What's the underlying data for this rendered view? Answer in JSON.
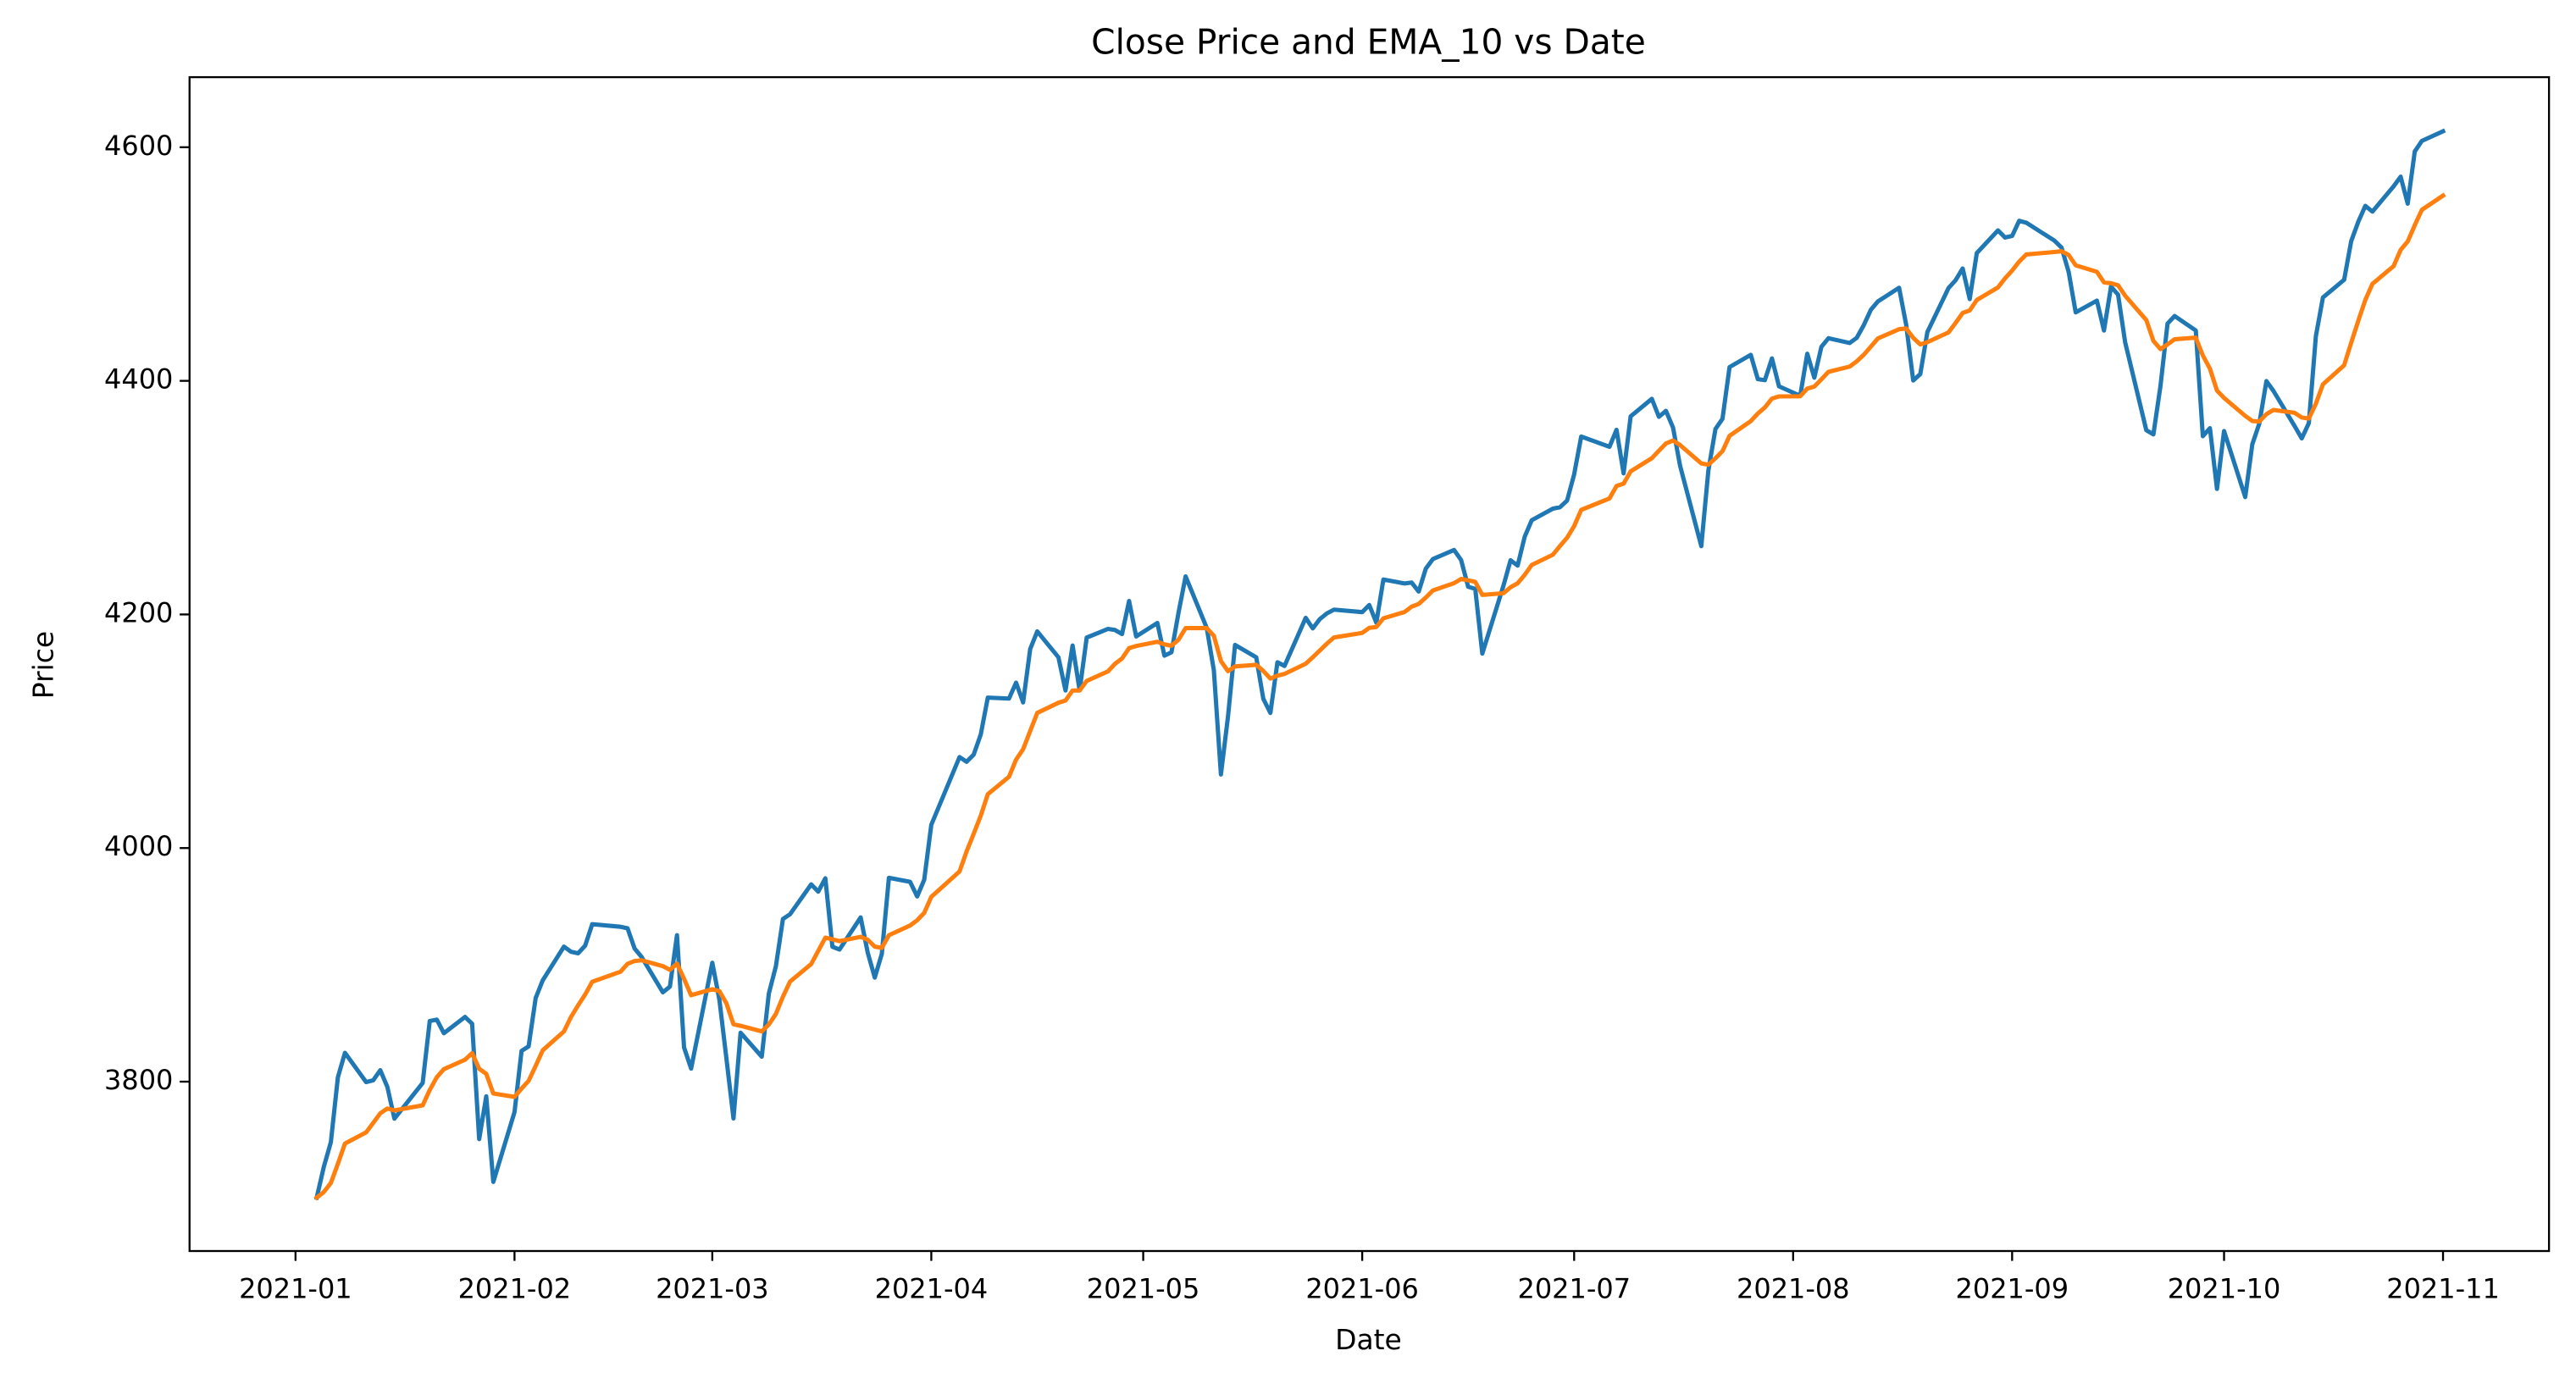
{
  "chart_data": {
    "type": "line",
    "title": "Close Price and EMA_10 vs Date",
    "x_label": "Date",
    "y_label": "Price",
    "x": [
      "2021-01-04",
      "2021-01-05",
      "2021-01-06",
      "2021-01-07",
      "2021-01-08",
      "2021-01-11",
      "2021-01-12",
      "2021-01-13",
      "2021-01-14",
      "2021-01-15",
      "2021-01-19",
      "2021-01-20",
      "2021-01-21",
      "2021-01-22",
      "2021-01-25",
      "2021-01-26",
      "2021-01-27",
      "2021-01-28",
      "2021-01-29",
      "2021-02-01",
      "2021-02-02",
      "2021-02-03",
      "2021-02-04",
      "2021-02-05",
      "2021-02-08",
      "2021-02-09",
      "2021-02-10",
      "2021-02-11",
      "2021-02-12",
      "2021-02-16",
      "2021-02-17",
      "2021-02-18",
      "2021-02-19",
      "2021-02-22",
      "2021-02-23",
      "2021-02-24",
      "2021-02-25",
      "2021-02-26",
      "2021-03-01",
      "2021-03-02",
      "2021-03-03",
      "2021-03-04",
      "2021-03-05",
      "2021-03-08",
      "2021-03-09",
      "2021-03-10",
      "2021-03-11",
      "2021-03-12",
      "2021-03-15",
      "2021-03-16",
      "2021-03-17",
      "2021-03-18",
      "2021-03-19",
      "2021-03-22",
      "2021-03-23",
      "2021-03-24",
      "2021-03-25",
      "2021-03-26",
      "2021-03-29",
      "2021-03-30",
      "2021-03-31",
      "2021-04-01",
      "2021-04-05",
      "2021-04-06",
      "2021-04-07",
      "2021-04-08",
      "2021-04-09",
      "2021-04-12",
      "2021-04-13",
      "2021-04-14",
      "2021-04-15",
      "2021-04-16",
      "2021-04-19",
      "2021-04-20",
      "2021-04-21",
      "2021-04-22",
      "2021-04-23",
      "2021-04-26",
      "2021-04-27",
      "2021-04-28",
      "2021-04-29",
      "2021-04-30",
      "2021-05-03",
      "2021-05-04",
      "2021-05-05",
      "2021-05-06",
      "2021-05-07",
      "2021-05-10",
      "2021-05-11",
      "2021-05-12",
      "2021-05-13",
      "2021-05-14",
      "2021-05-17",
      "2021-05-18",
      "2021-05-19",
      "2021-05-20",
      "2021-05-21",
      "2021-05-24",
      "2021-05-25",
      "2021-05-26",
      "2021-05-27",
      "2021-05-28",
      "2021-06-01",
      "2021-06-02",
      "2021-06-03",
      "2021-06-04",
      "2021-06-07",
      "2021-06-08",
      "2021-06-09",
      "2021-06-10",
      "2021-06-11",
      "2021-06-14",
      "2021-06-15",
      "2021-06-16",
      "2021-06-17",
      "2021-06-18",
      "2021-06-21",
      "2021-06-22",
      "2021-06-23",
      "2021-06-24",
      "2021-06-25",
      "2021-06-28",
      "2021-06-29",
      "2021-06-30",
      "2021-07-01",
      "2021-07-02",
      "2021-07-06",
      "2021-07-07",
      "2021-07-08",
      "2021-07-09",
      "2021-07-12",
      "2021-07-13",
      "2021-07-14",
      "2021-07-15",
      "2021-07-16",
      "2021-07-19",
      "2021-07-20",
      "2021-07-21",
      "2021-07-22",
      "2021-07-23",
      "2021-07-26",
      "2021-07-27",
      "2021-07-28",
      "2021-07-29",
      "2021-07-30",
      "2021-08-02",
      "2021-08-03",
      "2021-08-04",
      "2021-08-05",
      "2021-08-06",
      "2021-08-09",
      "2021-08-10",
      "2021-08-11",
      "2021-08-12",
      "2021-08-13",
      "2021-08-16",
      "2021-08-17",
      "2021-08-18",
      "2021-08-19",
      "2021-08-20",
      "2021-08-23",
      "2021-08-24",
      "2021-08-25",
      "2021-08-26",
      "2021-08-27",
      "2021-08-30",
      "2021-08-31",
      "2021-09-01",
      "2021-09-02",
      "2021-09-03",
      "2021-09-07",
      "2021-09-08",
      "2021-09-09",
      "2021-09-10",
      "2021-09-13",
      "2021-09-14",
      "2021-09-15",
      "2021-09-16",
      "2021-09-17",
      "2021-09-20",
      "2021-09-21",
      "2021-09-22",
      "2021-09-23",
      "2021-09-24",
      "2021-09-27",
      "2021-09-28",
      "2021-09-29",
      "2021-09-30",
      "2021-10-01",
      "2021-10-04",
      "2021-10-05",
      "2021-10-06",
      "2021-10-07",
      "2021-10-08",
      "2021-10-11",
      "2021-10-12",
      "2021-10-13",
      "2021-10-14",
      "2021-10-15",
      "2021-10-18",
      "2021-10-19",
      "2021-10-20",
      "2021-10-21",
      "2021-10-22",
      "2021-10-25",
      "2021-10-26",
      "2021-10-27",
      "2021-10-28",
      "2021-10-29",
      "2021-11-01"
    ],
    "series": [
      {
        "color": "#1f77b4",
        "values": [
          3700.7,
          3726.9,
          3748.1,
          3803.8,
          3824.7,
          3799.6,
          3801.2,
          3809.8,
          3795.5,
          3768.3,
          3798.9,
          3851.9,
          3853.1,
          3841.5,
          3855.4,
          3849.6,
          3750.8,
          3787.4,
          3714.2,
          3773.9,
          3826.3,
          3830.2,
          3871.7,
          3886.8,
          3915.6,
          3911.2,
          3909.9,
          3916.4,
          3934.8,
          3932.6,
          3931.3,
          3914.0,
          3906.7,
          3876.5,
          3881.4,
          3925.4,
          3829.3,
          3811.2,
          3901.8,
          3870.3,
          3819.7,
          3768.5,
          3841.9,
          3821.4,
          3875.4,
          3898.8,
          3939.3,
          3943.3,
          3968.9,
          3962.7,
          3974.1,
          3915.5,
          3913.1,
          3940.6,
          3910.5,
          3889.1,
          3909.5,
          3974.5,
          3971.1,
          3958.6,
          3972.9,
          4019.9,
          4077.9,
          4073.9,
          4080.0,
          4097.2,
          4128.8,
          4128.0,
          4141.6,
          4124.7,
          4170.4,
          4185.5,
          4163.3,
          4134.9,
          4173.4,
          4135.0,
          4180.2,
          4187.6,
          4186.7,
          4183.2,
          4211.5,
          4181.2,
          4192.7,
          4164.7,
          4167.6,
          4201.6,
          4232.6,
          4188.4,
          4152.1,
          4063.0,
          4112.5,
          4173.9,
          4163.3,
          4127.8,
          4115.7,
          4159.1,
          4155.9,
          4197.1,
          4188.1,
          4196.0,
          4200.9,
          4204.1,
          4202.0,
          4208.1,
          4192.9,
          4229.9,
          4226.5,
          4227.3,
          4219.6,
          4239.2,
          4247.4,
          4255.2,
          4246.6,
          4223.7,
          4221.9,
          4166.5,
          4224.8,
          4246.4,
          4241.8,
          4266.5,
          4280.7,
          4290.6,
          4291.8,
          4297.5,
          4319.9,
          4352.3,
          4343.5,
          4358.1,
          4320.8,
          4369.6,
          4384.6,
          4369.2,
          4374.3,
          4360.0,
          4327.2,
          4258.5,
          4323.1,
          4358.7,
          4367.5,
          4411.8,
          4422.3,
          4401.5,
          4400.6,
          4419.2,
          4395.3,
          4387.2,
          4423.2,
          4402.7,
          4429.1,
          4436.5,
          4432.4,
          4436.8,
          4447.7,
          4460.8,
          4468.0,
          4479.7,
          4448.1,
          4400.3,
          4405.8,
          4441.7,
          4479.5,
          4486.2,
          4496.2,
          4470.0,
          4509.4,
          4528.8,
          4522.7,
          4524.1,
          4537.0,
          4535.4,
          4520.0,
          4514.1,
          4493.3,
          4458.6,
          4468.7,
          4443.1,
          4480.7,
          4473.8,
          4433.0,
          4357.7,
          4354.2,
          4395.6,
          4449.0,
          4455.5,
          4443.1,
          4352.6,
          4359.5,
          4307.5,
          4357.0,
          4300.5,
          4345.7,
          4363.6,
          4399.8,
          4391.3,
          4361.2,
          4350.7,
          4363.8,
          4438.3,
          4471.4,
          4486.5,
          4519.6,
          4536.2,
          4549.8,
          4544.9,
          4566.5,
          4574.8,
          4551.7,
          4596.4,
          4605.4,
          4613.7
        ]
      },
      {
        "color": "#ff7f0e",
        "values": [
          3700.7,
          3705.5,
          3713.2,
          3729.7,
          3747.0,
          3756.6,
          3764.7,
          3772.9,
          3777.0,
          3775.4,
          3779.7,
          3792.8,
          3803.8,
          3810.7,
          3818.8,
          3824.4,
          3811.0,
          3806.7,
          3789.9,
          3787.0,
          3794.1,
          3800.7,
          3813.6,
          3826.9,
          3843.0,
          3855.4,
          3865.3,
          3874.6,
          3885.5,
          3894.1,
          3900.9,
          3903.3,
          3903.9,
          3898.9,
          3895.7,
          3901.1,
          3888.0,
          3874.0,
          3879.1,
          3877.5,
          3867.0,
          3849.1,
          3847.8,
          3843.0,
          3848.9,
          3858.0,
          3872.8,
          3885.6,
          3900.7,
          3912.0,
          3923.3,
          3921.9,
          3920.3,
          3924.0,
          3921.5,
          3915.6,
          3914.5,
          3925.4,
          3933.7,
          3938.2,
          3944.5,
          3958.2,
          3980.0,
          3997.1,
          4012.2,
          4027.7,
          4046.1,
          4061.0,
          4075.7,
          4084.6,
          4100.2,
          4115.7,
          4124.4,
          4126.3,
          4134.9,
          4134.9,
          4143.1,
          4151.2,
          4157.7,
          4162.3,
          4171.2,
          4173.0,
          4176.6,
          4174.4,
          4173.2,
          4178.4,
          4188.3,
          4188.3,
          4181.7,
          4160.1,
          4151.4,
          4155.5,
          4156.9,
          4151.6,
          4145.1,
          4147.6,
          4149.1,
          4157.8,
          4163.3,
          4169.2,
          4175.0,
          4180.3,
          4184.2,
          4188.5,
          4189.3,
          4196.7,
          4202.1,
          4206.7,
          4209.0,
          4214.5,
          4220.5,
          4226.8,
          4230.4,
          4229.2,
          4227.9,
          4216.7,
          4218.2,
          4223.3,
          4226.7,
          4233.9,
          4242.4,
          4251.2,
          4258.6,
          4265.7,
          4275.6,
          4289.5,
          4299.3,
          4310.0,
          4312.0,
          4322.5,
          4333.8,
          4340.2,
          4346.4,
          4348.9,
          4345.0,
          4329.3,
          4328.2,
          4333.7,
          4339.8,
          4352.9,
          4365.5,
          4372.0,
          4377.2,
          4384.8,
          4386.7,
          4386.8,
          4393.4,
          4395.1,
          4401.3,
          4407.7,
          4412.2,
          4416.7,
          4422.3,
          4429.3,
          4436.3,
          4444.2,
          4444.9,
          4436.8,
          4431.2,
          4433.1,
          4441.5,
          4449.6,
          4458.1,
          4460.3,
          4469.2,
          4480.0,
          4487.8,
          4494.4,
          4502.1,
          4508.2,
          4510.3,
          4511.0,
          4507.8,
          4498.9,
          4493.4,
          4484.3,
          4483.6,
          4481.8,
          4472.9,
          4452.0,
          4434.2,
          4427.2,
          4431.2,
          4435.6,
          4437.0,
          4421.7,
          4410.4,
          4391.7,
          4385.4,
          4370.0,
          4365.6,
          4365.2,
          4371.5,
          4375.1,
          4372.6,
          4368.6,
          4367.7,
          4380.5,
          4397.0,
          4413.3,
          4432.6,
          4451.4,
          4469.3,
          4483.0,
          4498.2,
          4512.1,
          4519.3,
          4533.3,
          4546.4,
          4558.6
        ]
      }
    ],
    "xlim": [
      "2020-12-17",
      "2021-11-16"
    ],
    "xticks": [
      "2021-01",
      "2021-02",
      "2021-03",
      "2021-04",
      "2021-05",
      "2021-06",
      "2021-07",
      "2021-08",
      "2021-09",
      "2021-10",
      "2021-11"
    ],
    "ylim": [
      3655,
      4660
    ],
    "yticks": [
      3800,
      4000,
      4200,
      4400,
      4600
    ]
  }
}
